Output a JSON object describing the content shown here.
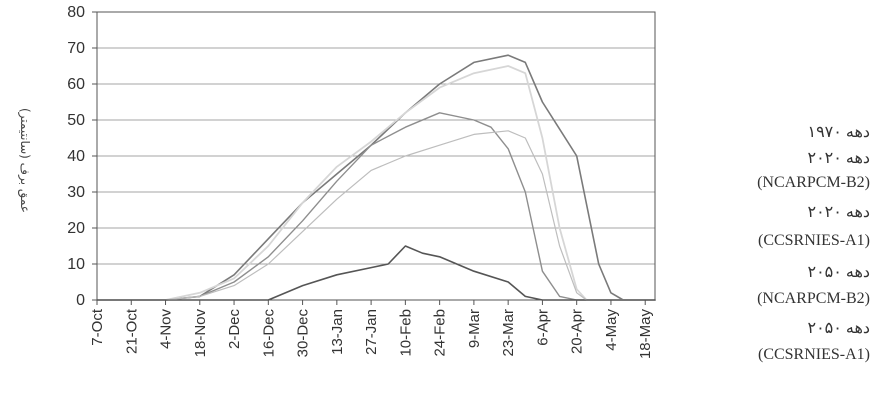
{
  "chart_data": {
    "type": "line",
    "ylabel": "عمق برف (سانتیمتر)",
    "xlabel": "",
    "ylim": [
      0,
      80
    ],
    "yticks": [
      0,
      10,
      20,
      30,
      40,
      50,
      60,
      70,
      80
    ],
    "xlim": [
      0,
      228
    ],
    "xticks": [
      {
        "label": "7-Oct",
        "x": 0
      },
      {
        "label": "21-Oct",
        "x": 14
      },
      {
        "label": "4-Nov",
        "x": 28
      },
      {
        "label": "18-Nov",
        "x": 42
      },
      {
        "label": "2-Dec",
        "x": 56
      },
      {
        "label": "16-Dec",
        "x": 70
      },
      {
        "label": "30-Dec",
        "x": 84
      },
      {
        "label": "13-Jan",
        "x": 98
      },
      {
        "label": "27-Jan",
        "x": 112
      },
      {
        "label": "10-Feb",
        "x": 126
      },
      {
        "label": "24-Feb",
        "x": 140
      },
      {
        "label": "9-Mar",
        "x": 154
      },
      {
        "label": "23-Mar",
        "x": 168
      },
      {
        "label": "6-Apr",
        "x": 182
      },
      {
        "label": "20-Apr",
        "x": 196
      },
      {
        "label": "4-May",
        "x": 210
      },
      {
        "label": "18-May",
        "x": 224
      }
    ],
    "grid": "horizontal",
    "legend_position": "right",
    "series": [
      {
        "name": "دهه ۱۹۷۰",
        "color": "#7a7a7a",
        "style": "solid",
        "width": 1.6,
        "points": [
          [
            0,
            0
          ],
          [
            28,
            0
          ],
          [
            42,
            1
          ],
          [
            56,
            7
          ],
          [
            70,
            17
          ],
          [
            84,
            27
          ],
          [
            98,
            35
          ],
          [
            112,
            43
          ],
          [
            126,
            52
          ],
          [
            140,
            60
          ],
          [
            154,
            66
          ],
          [
            168,
            68
          ],
          [
            175,
            66
          ],
          [
            182,
            55
          ],
          [
            196,
            40
          ],
          [
            205,
            10
          ],
          [
            210,
            2
          ],
          [
            215,
            0
          ],
          [
            228,
            0
          ]
        ]
      },
      {
        "name": "دهه ۲۰۲۰ (NCARPCM-B2)",
        "color": "#8e8e8e",
        "style": "solid",
        "width": 1.4,
        "points": [
          [
            0,
            0
          ],
          [
            28,
            0
          ],
          [
            42,
            1
          ],
          [
            56,
            5
          ],
          [
            70,
            12
          ],
          [
            84,
            22
          ],
          [
            98,
            33
          ],
          [
            112,
            43
          ],
          [
            126,
            48
          ],
          [
            140,
            52
          ],
          [
            154,
            50
          ],
          [
            161,
            48
          ],
          [
            168,
            42
          ],
          [
            175,
            30
          ],
          [
            182,
            8
          ],
          [
            189,
            1
          ],
          [
            196,
            0
          ],
          [
            228,
            0
          ]
        ]
      },
      {
        "name": "دهه ۲۰۲۰ (CCSRNIES-A1)",
        "color": "#d6d6d6",
        "style": "solid",
        "width": 1.8,
        "points": [
          [
            0,
            0
          ],
          [
            28,
            0
          ],
          [
            42,
            2
          ],
          [
            56,
            6
          ],
          [
            70,
            15
          ],
          [
            84,
            27
          ],
          [
            98,
            37
          ],
          [
            112,
            44
          ],
          [
            126,
            52
          ],
          [
            140,
            59
          ],
          [
            154,
            63
          ],
          [
            168,
            65
          ],
          [
            175,
            63
          ],
          [
            182,
            45
          ],
          [
            189,
            20
          ],
          [
            196,
            3
          ],
          [
            200,
            0
          ],
          [
            228,
            0
          ]
        ]
      },
      {
        "name": "دهه ۲۰۵۰ (NCARPCM-B2)",
        "color": "#555555",
        "style": "solid",
        "width": 1.6,
        "points": [
          [
            0,
            0
          ],
          [
            56,
            0
          ],
          [
            70,
            0
          ],
          [
            84,
            4
          ],
          [
            98,
            7
          ],
          [
            112,
            9
          ],
          [
            119,
            10
          ],
          [
            126,
            15
          ],
          [
            133,
            13
          ],
          [
            140,
            12
          ],
          [
            154,
            8
          ],
          [
            168,
            5
          ],
          [
            175,
            1
          ],
          [
            182,
            0
          ],
          [
            228,
            0
          ]
        ]
      },
      {
        "name": "دهه ۲۰۵۰ (CCSRNIES-A1)",
        "color": "#bdbdbd",
        "style": "solid",
        "width": 1.2,
        "points": [
          [
            0,
            0
          ],
          [
            28,
            0
          ],
          [
            42,
            1
          ],
          [
            56,
            4
          ],
          [
            70,
            10
          ],
          [
            84,
            19
          ],
          [
            98,
            28
          ],
          [
            112,
            36
          ],
          [
            126,
            40
          ],
          [
            140,
            43
          ],
          [
            154,
            46
          ],
          [
            168,
            47
          ],
          [
            175,
            45
          ],
          [
            182,
            35
          ],
          [
            189,
            15
          ],
          [
            196,
            2
          ],
          [
            200,
            0
          ],
          [
            228,
            0
          ]
        ]
      }
    ]
  },
  "legend": {
    "items": [
      "دهه ۱۹۷۰",
      "دهه ۲۰۲۰",
      "(NCARPCM-B2)",
      "دهه ۲۰۲۰",
      "(CCSRNIES-A1)",
      "دهه ۲۰۵۰",
      "(NCARPCM-B2)",
      "دهه ۲۰۵۰",
      "(CCSRNIES-A1)"
    ]
  }
}
